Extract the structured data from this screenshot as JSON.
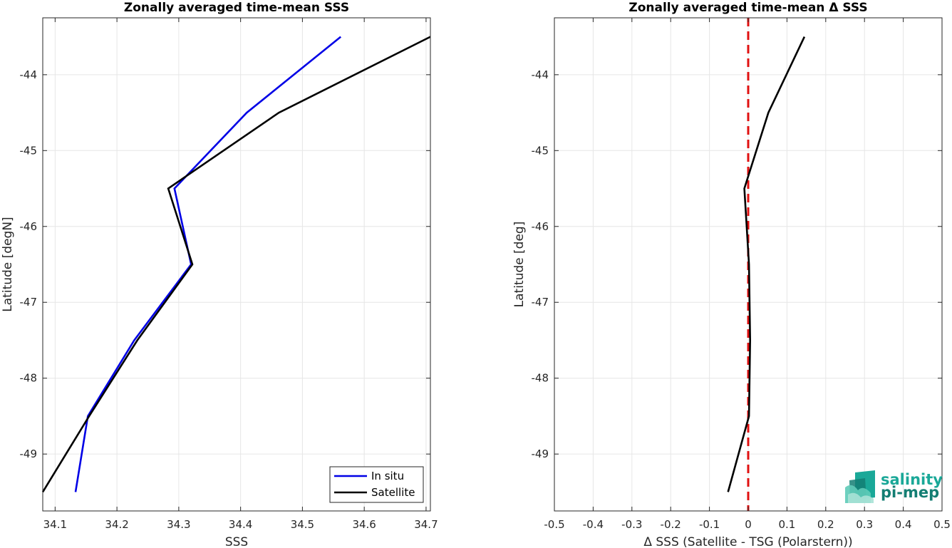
{
  "chart_data": [
    {
      "type": "line",
      "title": "Zonally averaged time-mean SSS",
      "xlabel": "SSS",
      "ylabel": "Latitude [degN]",
      "xlim": [
        34.08,
        34.707
      ],
      "ylim": [
        -49.75,
        -43.25
      ],
      "xticks": [
        34.1,
        34.2,
        34.3,
        34.4,
        34.5,
        34.6,
        34.7
      ],
      "xtick_labels": [
        "34.1",
        "34.2",
        "34.3",
        "34.4",
        "34.5",
        "34.6",
        "34.7"
      ],
      "yticks": [
        -44,
        -45,
        -46,
        -47,
        -48,
        -49
      ],
      "ytick_labels": [
        "-44",
        "-45",
        "-46",
        "-47",
        "-48",
        "-49"
      ],
      "grid": true,
      "legend_position": "bottom-right",
      "series": [
        {
          "name": "In situ",
          "color": "#0000e6",
          "x": [
            34.562,
            34.41,
            34.293,
            34.32,
            34.228,
            34.153,
            34.133
          ],
          "y": [
            -43.5,
            -44.5,
            -45.5,
            -46.5,
            -47.5,
            -48.5,
            -49.5
          ]
        },
        {
          "name": "Satellite",
          "color": "#000000",
          "x": [
            34.707,
            34.462,
            34.283,
            34.322,
            34.233,
            34.155,
            34.08
          ],
          "y": [
            -43.5,
            -44.5,
            -45.5,
            -46.5,
            -47.5,
            -48.5,
            -49.5
          ]
        }
      ]
    },
    {
      "type": "line",
      "title": "Zonally averaged time-mean Δ SSS",
      "xlabel": "Δ SSS (Satellite - TSG (Polarstern))",
      "ylabel": "Latitude [deg]",
      "xlim": [
        -0.5,
        0.5
      ],
      "ylim": [
        -49.75,
        -43.25
      ],
      "xticks": [
        -0.5,
        -0.4,
        -0.3,
        -0.2,
        -0.1,
        0,
        0.1,
        0.2,
        0.3,
        0.4,
        0.5
      ],
      "xtick_labels": [
        "-0.5",
        "-0.4",
        "-0.3",
        "-0.2",
        "-0.1",
        "0",
        "0.1",
        "0.2",
        "0.3",
        "0.4",
        "0.5"
      ],
      "yticks": [
        -44,
        -45,
        -46,
        -47,
        -48,
        -49
      ],
      "ytick_labels": [
        "-44",
        "-45",
        "-46",
        "-47",
        "-48",
        "-49"
      ],
      "grid": true,
      "series": [
        {
          "color": "#000000",
          "x": [
            0.145,
            0.052,
            -0.01,
            0.002,
            0.005,
            0.002,
            -0.052
          ],
          "y": [
            -43.5,
            -44.5,
            -45.5,
            -46.5,
            -47.5,
            -48.5,
            -49.5
          ]
        }
      ],
      "reference_line": {
        "x": 0,
        "color": "#e01010",
        "style": "dashed"
      }
    }
  ],
  "logo": {
    "line1": "salinity",
    "line2": "pi-mep",
    "colors": [
      "#1aa898",
      "#137e73",
      "#5ecbb8"
    ]
  }
}
